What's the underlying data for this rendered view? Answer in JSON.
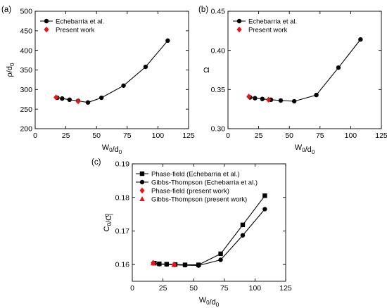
{
  "chart_data": [
    {
      "panel_label": "(a)",
      "type": "line",
      "xlabel": "W0/d0",
      "ylabel": "ρ/d0",
      "xlim": [
        0,
        125
      ],
      "ylim": [
        200,
        500
      ],
      "xticks": [
        0,
        25,
        50,
        75,
        100,
        125
      ],
      "yticks": [
        200,
        250,
        300,
        350,
        400,
        450,
        500
      ],
      "grid": false,
      "legend_position": "top-left",
      "series": [
        {
          "name": "Echebarria et al.",
          "marker": "circle",
          "color": "#000000",
          "line": true,
          "x": [
            18,
            22,
            28,
            35,
            43,
            54,
            72,
            90,
            108
          ],
          "y": [
            279,
            277,
            274,
            271,
            267,
            279,
            310,
            358,
            425
          ]
        },
        {
          "name": "Present work",
          "marker": "diamond",
          "color": "#e8161b",
          "line": false,
          "x": [
            17,
            35
          ],
          "y": [
            280,
            270
          ]
        }
      ]
    },
    {
      "panel_label": "(b)",
      "type": "line",
      "xlabel": "W0/d0",
      "ylabel": "Ω",
      "xlim": [
        0,
        125
      ],
      "ylim": [
        0.3,
        0.45
      ],
      "xticks": [
        0,
        25,
        50,
        75,
        100,
        125
      ],
      "yticks": [
        0.3,
        0.35,
        0.4,
        0.45
      ],
      "ytick_labels": [
        "0.30",
        "0.35",
        "0.40",
        "0.45"
      ],
      "grid": false,
      "legend_position": "top-left",
      "series": [
        {
          "name": "Echebarria et al.",
          "marker": "circle",
          "color": "#000000",
          "line": true,
          "x": [
            18,
            22,
            28,
            35,
            43,
            54,
            72,
            90,
            108
          ],
          "y": [
            0.34,
            0.339,
            0.338,
            0.337,
            0.336,
            0.335,
            0.343,
            0.378,
            0.414
          ]
        },
        {
          "name": "Present work",
          "marker": "diamond",
          "color": "#e8161b",
          "line": false,
          "x": [
            17,
            33
          ],
          "y": [
            0.341,
            0.337
          ]
        }
      ]
    },
    {
      "panel_label": "(c)",
      "type": "line",
      "xlabel": "W0/d0",
      "ylabel": "C0/Cl0",
      "xlim": [
        0,
        125
      ],
      "ylim": [
        0.155,
        0.19
      ],
      "xticks": [
        0,
        25,
        50,
        75,
        100,
        125
      ],
      "yticks": [
        0.16,
        0.17,
        0.18,
        0.19
      ],
      "ytick_labels": [
        "0.16",
        "0.17",
        "0.18",
        "0.19"
      ],
      "grid": false,
      "legend_position": "top-left",
      "series": [
        {
          "name": "Phase-field (Echebarria et al.)",
          "marker": "square",
          "color": "#000000",
          "line": true,
          "x": [
            18,
            22,
            28,
            35,
            43,
            54,
            72,
            90,
            108
          ],
          "y": [
            0.1604,
            0.1602,
            0.1601,
            0.16,
            0.1599,
            0.1599,
            0.1632,
            0.1718,
            0.1805
          ]
        },
        {
          "name": "Gibbs-Thompson (Echebarria et al.)",
          "marker": "circle",
          "color": "#000000",
          "line": true,
          "x": [
            18,
            22,
            28,
            35,
            43,
            54,
            72,
            90,
            108
          ],
          "y": [
            0.1604,
            0.1601,
            0.16,
            0.1599,
            0.1598,
            0.1597,
            0.1614,
            0.1687,
            0.1765
          ]
        },
        {
          "name": "Phase-field (present work)",
          "marker": "diamond",
          "color": "#e8161b",
          "line": false,
          "x": [
            17,
            34
          ],
          "y": [
            0.1605,
            0.16
          ]
        },
        {
          "name": "Gibbs-Thompson (present work)",
          "marker": "triangle",
          "color": "#e8161b",
          "line": false,
          "x": [
            17,
            34
          ],
          "y": [
            0.1604,
            0.1599
          ]
        }
      ]
    }
  ]
}
